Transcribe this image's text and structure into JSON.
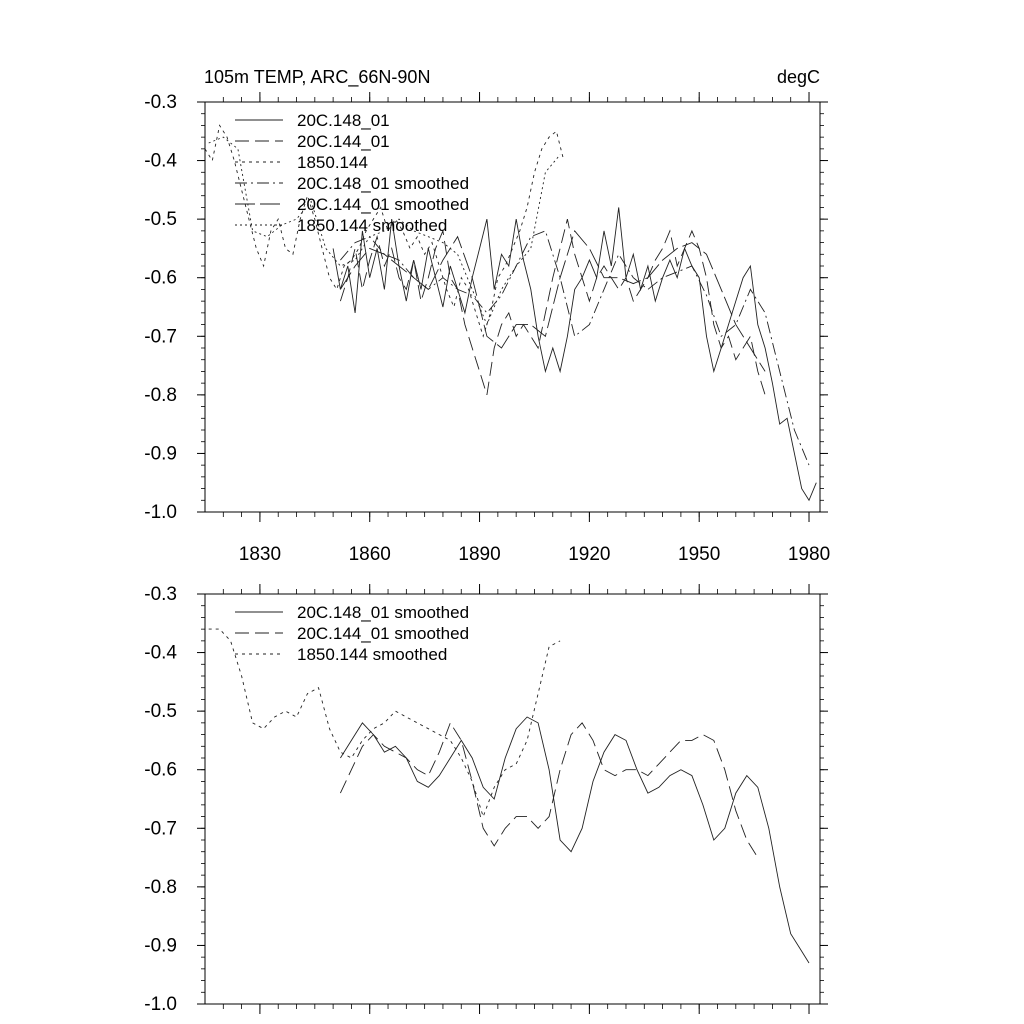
{
  "chart_data": [
    {
      "type": "line",
      "title_left": "105m TEMP, ARC_66N-90N",
      "title_right": "degC",
      "xlim": [
        1815,
        1983
      ],
      "ylim": [
        -1.0,
        -0.3
      ],
      "xticks": [
        1830,
        1860,
        1890,
        1920,
        1950,
        1980
      ],
      "xtick_labels": [
        "1830",
        "1860",
        "1890",
        "1920",
        "1950",
        "1980"
      ],
      "yticks": [
        -0.3,
        -0.4,
        -0.5,
        -0.6,
        -0.7,
        -0.8,
        -0.9,
        -1.0
      ],
      "ytick_labels": [
        "-0.3",
        "-0.4",
        "-0.5",
        "-0.6",
        "-0.7",
        "-0.8",
        "-0.9",
        "-1.0"
      ],
      "legend": [
        "20C.148_01",
        "20C.144_01",
        "1850.144",
        "20C.148_01 smoothed",
        "20C.144_01 smoothed",
        "1850.144 smoothed"
      ],
      "series": [
        {
          "style": "solid",
          "x": [
            1850,
            1852,
            1854,
            1856,
            1858,
            1860,
            1862,
            1864,
            1866,
            1868,
            1870,
            1872,
            1874,
            1876,
            1878,
            1880,
            1882,
            1884,
            1886,
            1888,
            1890,
            1892,
            1894,
            1896,
            1898,
            1900,
            1902,
            1904,
            1906,
            1908,
            1910,
            1912,
            1914,
            1916,
            1918,
            1920,
            1922,
            1924,
            1926,
            1928,
            1930,
            1932,
            1934,
            1936,
            1938,
            1940,
            1942,
            1944,
            1946,
            1948,
            1950,
            1952,
            1954,
            1956,
            1958,
            1960,
            1962,
            1964,
            1966,
            1968,
            1970,
            1972,
            1974,
            1976,
            1978,
            1980,
            1982
          ],
          "y": [
            -0.55,
            -0.62,
            -0.58,
            -0.66,
            -0.52,
            -0.6,
            -0.55,
            -0.62,
            -0.5,
            -0.58,
            -0.64,
            -0.57,
            -0.62,
            -0.55,
            -0.6,
            -0.65,
            -0.58,
            -0.62,
            -0.66,
            -0.6,
            -0.55,
            -0.5,
            -0.62,
            -0.56,
            -0.58,
            -0.5,
            -0.57,
            -0.62,
            -0.7,
            -0.76,
            -0.72,
            -0.76,
            -0.7,
            -0.62,
            -0.6,
            -0.57,
            -0.6,
            -0.52,
            -0.58,
            -0.48,
            -0.6,
            -0.56,
            -0.62,
            -0.58,
            -0.64,
            -0.6,
            -0.57,
            -0.6,
            -0.55,
            -0.58,
            -0.6,
            -0.7,
            -0.76,
            -0.72,
            -0.68,
            -0.64,
            -0.6,
            -0.58,
            -0.68,
            -0.72,
            -0.78,
            -0.85,
            -0.84,
            -0.9,
            -0.96,
            -0.98,
            -0.95
          ]
        },
        {
          "style": "dash",
          "x": [
            1852,
            1854,
            1856,
            1858,
            1860,
            1862,
            1864,
            1866,
            1868,
            1870,
            1872,
            1874,
            1876,
            1878,
            1880,
            1882,
            1884,
            1886,
            1888,
            1890,
            1892,
            1894,
            1896,
            1898,
            1900,
            1902,
            1904,
            1906,
            1908,
            1910,
            1912,
            1914,
            1916,
            1918,
            1920,
            1922,
            1924,
            1926,
            1928,
            1930,
            1932,
            1934,
            1936,
            1938,
            1940,
            1942,
            1944,
            1946,
            1948,
            1950,
            1952,
            1954,
            1956,
            1958,
            1960,
            1962,
            1964,
            1966,
            1968
          ],
          "y": [
            -0.64,
            -0.6,
            -0.55,
            -0.62,
            -0.57,
            -0.53,
            -0.58,
            -0.55,
            -0.6,
            -0.62,
            -0.57,
            -0.64,
            -0.6,
            -0.55,
            -0.52,
            -0.6,
            -0.62,
            -0.68,
            -0.72,
            -0.76,
            -0.8,
            -0.72,
            -0.68,
            -0.66,
            -0.7,
            -0.68,
            -0.7,
            -0.72,
            -0.66,
            -0.6,
            -0.55,
            -0.5,
            -0.56,
            -0.6,
            -0.64,
            -0.6,
            -0.58,
            -0.6,
            -0.62,
            -0.6,
            -0.64,
            -0.62,
            -0.6,
            -0.57,
            -0.55,
            -0.52,
            -0.58,
            -0.55,
            -0.52,
            -0.55,
            -0.6,
            -0.68,
            -0.72,
            -0.7,
            -0.74,
            -0.72,
            -0.7,
            -0.76,
            -0.8
          ]
        },
        {
          "style": "dot",
          "x": [
            1815,
            1817,
            1819,
            1821,
            1823,
            1825,
            1827,
            1829,
            1831,
            1833,
            1835,
            1837,
            1839,
            1841,
            1843,
            1845,
            1847,
            1849,
            1851,
            1853,
            1855,
            1857,
            1859,
            1861,
            1863,
            1865,
            1867,
            1869,
            1871,
            1873,
            1875,
            1877,
            1879,
            1881,
            1883,
            1885,
            1887,
            1889,
            1891,
            1893,
            1895,
            1897,
            1899,
            1901,
            1903,
            1905,
            1907,
            1909,
            1911,
            1913
          ],
          "y": [
            -0.38,
            -0.4,
            -0.34,
            -0.36,
            -0.4,
            -0.45,
            -0.5,
            -0.55,
            -0.58,
            -0.52,
            -0.5,
            -0.55,
            -0.56,
            -0.5,
            -0.46,
            -0.5,
            -0.55,
            -0.6,
            -0.62,
            -0.58,
            -0.57,
            -0.55,
            -0.52,
            -0.5,
            -0.48,
            -0.52,
            -0.5,
            -0.52,
            -0.55,
            -0.53,
            -0.56,
            -0.54,
            -0.58,
            -0.62,
            -0.65,
            -0.6,
            -0.62,
            -0.66,
            -0.7,
            -0.66,
            -0.6,
            -0.58,
            -0.55,
            -0.52,
            -0.48,
            -0.42,
            -0.38,
            -0.36,
            -0.35,
            -0.4
          ]
        },
        {
          "style": "dashdot",
          "x": [
            1852,
            1856,
            1860,
            1864,
            1868,
            1872,
            1876,
            1880,
            1884,
            1888,
            1892,
            1896,
            1900,
            1904,
            1908,
            1912,
            1916,
            1920,
            1924,
            1928,
            1932,
            1936,
            1940,
            1944,
            1948,
            1952,
            1956,
            1960,
            1964,
            1968,
            1972,
            1976,
            1980
          ],
          "y": [
            -0.57,
            -0.54,
            -0.53,
            -0.56,
            -0.57,
            -0.6,
            -0.62,
            -0.6,
            -0.62,
            -0.63,
            -0.66,
            -0.63,
            -0.58,
            -0.53,
            -0.52,
            -0.6,
            -0.7,
            -0.68,
            -0.62,
            -0.56,
            -0.6,
            -0.62,
            -0.6,
            -0.59,
            -0.58,
            -0.63,
            -0.7,
            -0.68,
            -0.62,
            -0.66,
            -0.76,
            -0.86,
            -0.92
          ]
        },
        {
          "style": "longdash",
          "x": [
            1852,
            1856,
            1860,
            1864,
            1868,
            1872,
            1876,
            1880,
            1884,
            1888,
            1892,
            1896,
            1900,
            1904,
            1908,
            1912,
            1916,
            1920,
            1924,
            1928,
            1932,
            1936,
            1940,
            1944,
            1948,
            1952,
            1956,
            1960,
            1964,
            1968
          ],
          "y": [
            -0.62,
            -0.58,
            -0.55,
            -0.56,
            -0.58,
            -0.6,
            -0.62,
            -0.57,
            -0.53,
            -0.6,
            -0.7,
            -0.72,
            -0.68,
            -0.68,
            -0.7,
            -0.6,
            -0.52,
            -0.55,
            -0.6,
            -0.6,
            -0.61,
            -0.6,
            -0.57,
            -0.55,
            -0.54,
            -0.56,
            -0.62,
            -0.68,
            -0.72,
            -0.76
          ]
        },
        {
          "style": "longdot",
          "x": [
            1816,
            1820,
            1824,
            1828,
            1832,
            1836,
            1840,
            1844,
            1848,
            1852,
            1856,
            1860,
            1864,
            1868,
            1872,
            1876,
            1880,
            1884,
            1888,
            1892,
            1896,
            1900,
            1904,
            1908,
            1912
          ],
          "y": [
            -0.37,
            -0.36,
            -0.38,
            -0.52,
            -0.53,
            -0.51,
            -0.5,
            -0.47,
            -0.55,
            -0.58,
            -0.57,
            -0.53,
            -0.52,
            -0.5,
            -0.52,
            -0.53,
            -0.54,
            -0.56,
            -0.62,
            -0.68,
            -0.62,
            -0.58,
            -0.55,
            -0.42,
            -0.39
          ]
        }
      ]
    },
    {
      "type": "line",
      "xlim": [
        1815,
        1983
      ],
      "ylim": [
        -1.0,
        -0.3
      ],
      "xticks": [
        1830,
        1860,
        1890,
        1920,
        1950,
        1980
      ],
      "yticks": [
        -0.3,
        -0.4,
        -0.5,
        -0.6,
        -0.7,
        -0.8,
        -0.9,
        -1.0
      ],
      "ytick_labels": [
        "-0.3",
        "-0.4",
        "-0.5",
        "-0.6",
        "-0.7",
        "-0.8",
        "-0.9",
        "-1.0"
      ],
      "legend": [
        "20C.148_01 smoothed",
        "20C.144_01 smoothed",
        "1850.144 smoothed"
      ],
      "series": [
        {
          "style": "solid",
          "x": [
            1852,
            1855,
            1858,
            1861,
            1864,
            1867,
            1870,
            1873,
            1876,
            1879,
            1882,
            1885,
            1888,
            1891,
            1894,
            1897,
            1900,
            1903,
            1906,
            1909,
            1912,
            1915,
            1918,
            1921,
            1924,
            1927,
            1930,
            1933,
            1936,
            1939,
            1942,
            1945,
            1948,
            1951,
            1954,
            1957,
            1960,
            1963,
            1966,
            1969,
            1972,
            1975,
            1978,
            1980
          ],
          "y": [
            -0.58,
            -0.55,
            -0.52,
            -0.54,
            -0.57,
            -0.56,
            -0.58,
            -0.62,
            -0.63,
            -0.61,
            -0.58,
            -0.55,
            -0.58,
            -0.63,
            -0.65,
            -0.58,
            -0.53,
            -0.51,
            -0.52,
            -0.6,
            -0.72,
            -0.74,
            -0.7,
            -0.62,
            -0.57,
            -0.54,
            -0.55,
            -0.6,
            -0.64,
            -0.63,
            -0.61,
            -0.6,
            -0.61,
            -0.66,
            -0.72,
            -0.7,
            -0.64,
            -0.61,
            -0.63,
            -0.7,
            -0.8,
            -0.88,
            -0.91,
            -0.93
          ]
        },
        {
          "style": "dash",
          "x": [
            1852,
            1855,
            1858,
            1861,
            1864,
            1867,
            1870,
            1873,
            1876,
            1879,
            1882,
            1885,
            1888,
            1891,
            1894,
            1897,
            1900,
            1903,
            1906,
            1909,
            1912,
            1915,
            1918,
            1921,
            1924,
            1927,
            1930,
            1933,
            1936,
            1939,
            1942,
            1945,
            1948,
            1951,
            1954,
            1957,
            1960,
            1963,
            1966
          ],
          "y": [
            -0.64,
            -0.6,
            -0.56,
            -0.54,
            -0.56,
            -0.57,
            -0.58,
            -0.6,
            -0.61,
            -0.57,
            -0.52,
            -0.55,
            -0.62,
            -0.7,
            -0.73,
            -0.7,
            -0.68,
            -0.68,
            -0.7,
            -0.68,
            -0.6,
            -0.54,
            -0.52,
            -0.55,
            -0.6,
            -0.61,
            -0.6,
            -0.6,
            -0.61,
            -0.59,
            -0.57,
            -0.55,
            -0.55,
            -0.54,
            -0.55,
            -0.6,
            -0.67,
            -0.72,
            -0.75
          ]
        },
        {
          "style": "dot",
          "x": [
            1816,
            1819,
            1822,
            1825,
            1828,
            1831,
            1834,
            1837,
            1840,
            1843,
            1846,
            1849,
            1852,
            1855,
            1858,
            1861,
            1864,
            1867,
            1870,
            1873,
            1876,
            1879,
            1882,
            1885,
            1888,
            1891,
            1894,
            1897,
            1900,
            1903,
            1906,
            1909,
            1912
          ],
          "y": [
            -0.36,
            -0.36,
            -0.38,
            -0.44,
            -0.52,
            -0.53,
            -0.51,
            -0.5,
            -0.51,
            -0.47,
            -0.46,
            -0.53,
            -0.57,
            -0.58,
            -0.55,
            -0.53,
            -0.52,
            -0.5,
            -0.51,
            -0.52,
            -0.53,
            -0.54,
            -0.55,
            -0.58,
            -0.62,
            -0.68,
            -0.63,
            -0.6,
            -0.59,
            -0.55,
            -0.47,
            -0.39,
            -0.38
          ]
        }
      ]
    }
  ]
}
